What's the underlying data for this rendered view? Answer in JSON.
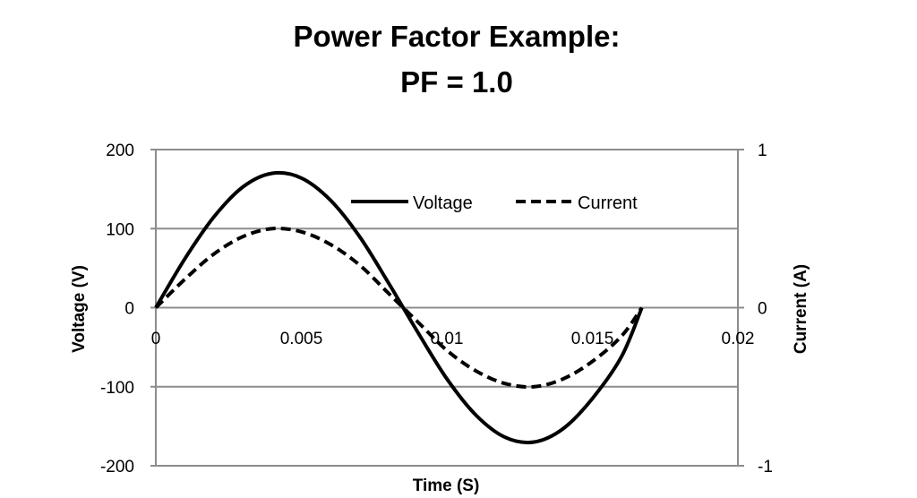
{
  "chart_data": {
    "type": "line",
    "title_line1": "Power Factor Example:",
    "title_line2": "PF = 1.0",
    "xlabel": "Time (S)",
    "ylabel_left": "Voltage (V)",
    "ylabel_right": "Current (A)",
    "xlim": [
      0,
      0.02
    ],
    "ylim_left": [
      -200,
      200
    ],
    "ylim_right": [
      -1,
      1
    ],
    "x_ticks": [
      "0",
      "0.005",
      "0.01",
      "0.015",
      "0.02"
    ],
    "y_left_ticks": [
      "200",
      "100",
      "0",
      "-100",
      "-200"
    ],
    "y_right_ticks": [
      "1",
      "0",
      "-1"
    ],
    "grid": true,
    "legend_position": "top-center",
    "series": [
      {
        "name": "Voltage",
        "axis": "left",
        "style": "solid",
        "x": [
          0,
          0.001,
          0.002,
          0.003,
          0.004,
          0.005,
          0.006,
          0.007,
          0.008,
          0.009,
          0.01,
          0.011,
          0.012,
          0.013,
          0.014,
          0.015,
          0.016,
          0.0167
        ],
        "y": [
          0,
          62,
          115,
          153,
          170,
          164,
          136,
          90,
          31,
          -31,
          -90,
          -136,
          -164,
          -170,
          -153,
          -115,
          -62,
          0
        ]
      },
      {
        "name": "Current",
        "axis": "right",
        "style": "dashed",
        "x": [
          0,
          0.001,
          0.002,
          0.003,
          0.004,
          0.005,
          0.006,
          0.007,
          0.008,
          0.009,
          0.01,
          0.011,
          0.012,
          0.013,
          0.014,
          0.015,
          0.016,
          0.0167
        ],
        "y": [
          0,
          0.18,
          0.34,
          0.45,
          0.5,
          0.48,
          0.4,
          0.27,
          0.09,
          -0.09,
          -0.27,
          -0.4,
          -0.48,
          -0.5,
          -0.45,
          -0.34,
          -0.18,
          0
        ]
      }
    ]
  }
}
